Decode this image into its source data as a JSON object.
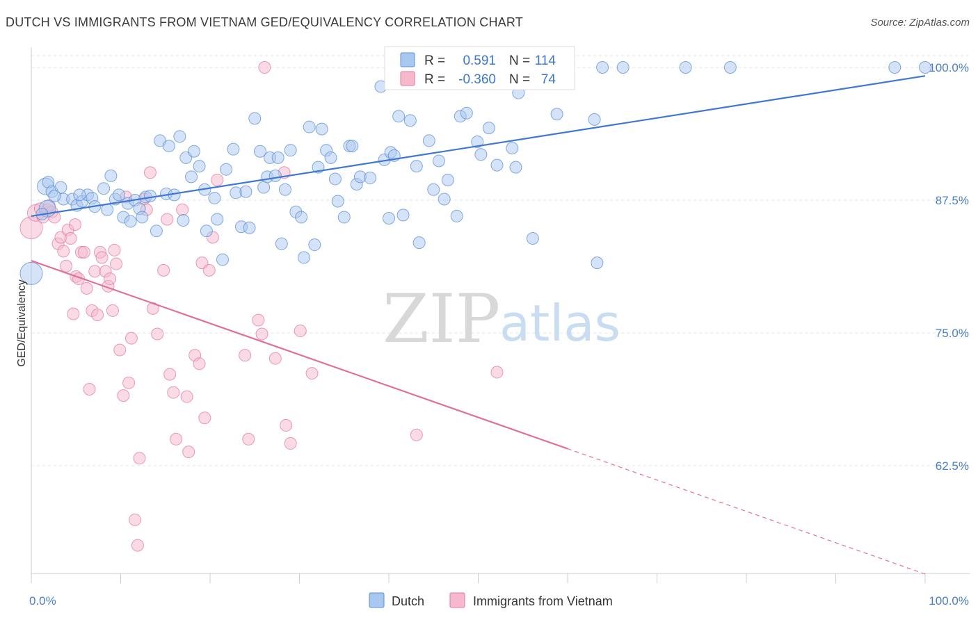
{
  "title": "DUTCH VS IMMIGRANTS FROM VIETNAM GED/EQUIVALENCY CORRELATION CHART",
  "source": "Source: ZipAtlas.com",
  "watermark": {
    "zip": "ZIP",
    "atlas": "atlas"
  },
  "legend": {
    "rows": [
      {
        "r_label": "R =",
        "r_value": "0.591",
        "n_label": "N =",
        "n_value": "114",
        "color": "#a9c8f0"
      },
      {
        "r_label": "R =",
        "r_value": "-0.360",
        "n_label": "N =",
        "n_value": "74",
        "color": "#f5b8cc"
      }
    ]
  },
  "bottom_legend": [
    "Dutch",
    "Immigrants from Vietnam"
  ],
  "chart_data": {
    "type": "scatter",
    "title": "DUTCH VS IMMIGRANTS FROM VIETNAM GED/EQUIVALENCY CORRELATION CHART",
    "xlabel": "",
    "ylabel": "GED/Equivalency",
    "xlim": [
      0,
      100
    ],
    "ylim": [
      52,
      101
    ],
    "x_tick_labels": [
      "0.0%",
      "100.0%"
    ],
    "y_ticks": [
      62.5,
      75.0,
      87.5,
      100.0
    ],
    "y_tick_labels": [
      "62.5%",
      "75.0%",
      "87.5%",
      "100.0%"
    ],
    "grid": true,
    "legend_position": "top-center",
    "series": [
      {
        "name": "Dutch",
        "color": "#a9c8f0",
        "stroke": "#5b8fd6",
        "trend": {
          "x": [
            0,
            100
          ],
          "y": [
            86.0,
            99.2
          ],
          "color": "#3f78d0"
        },
        "points": [
          [
            0,
            80.6,
            3
          ],
          [
            1.6,
            88.8,
            2
          ],
          [
            1.9,
            89.2,
            1
          ],
          [
            2.3,
            88.3,
            1
          ],
          [
            3.3,
            88.7,
            1
          ],
          [
            1.8,
            86.7,
            2
          ],
          [
            3.6,
            87.6,
            1
          ],
          [
            4.6,
            87.6,
            1
          ],
          [
            5.1,
            87.0,
            1
          ],
          [
            5.7,
            87.4,
            1
          ],
          [
            6.3,
            88.0,
            1
          ],
          [
            6.8,
            87.7,
            1
          ],
          [
            7.1,
            86.9,
            1
          ],
          [
            8.1,
            88.6,
            1
          ],
          [
            8.5,
            86.6,
            1
          ],
          [
            8.9,
            89.8,
            1
          ],
          [
            9.4,
            87.6,
            1
          ],
          [
            9.8,
            88.0,
            1
          ],
          [
            10.3,
            85.9,
            1
          ],
          [
            10.8,
            87.2,
            1
          ],
          [
            11.1,
            85.5,
            1
          ],
          [
            11.6,
            87.5,
            1
          ],
          [
            12.1,
            86.7,
            1
          ],
          [
            12.4,
            85.9,
            1
          ],
          [
            12.8,
            87.8,
            1
          ],
          [
            13.3,
            87.9,
            1
          ],
          [
            14.0,
            84.6,
            1
          ],
          [
            14.4,
            93.1,
            1
          ],
          [
            15.1,
            88.1,
            1
          ],
          [
            15.4,
            92.6,
            1
          ],
          [
            16.0,
            88.0,
            1
          ],
          [
            16.6,
            93.5,
            1
          ],
          [
            17.0,
            85.6,
            1
          ],
          [
            17.3,
            91.5,
            1
          ],
          [
            17.9,
            89.7,
            1
          ],
          [
            18.2,
            92.1,
            1
          ],
          [
            18.8,
            90.7,
            1
          ],
          [
            19.4,
            88.5,
            1
          ],
          [
            19.6,
            84.6,
            1
          ],
          [
            20.5,
            87.7,
            1
          ],
          [
            20.8,
            85.7,
            1
          ],
          [
            21.4,
            81.9,
            1
          ],
          [
            21.8,
            90.4,
            1
          ],
          [
            22.6,
            92.3,
            1
          ],
          [
            22.9,
            88.2,
            1
          ],
          [
            23.5,
            85.0,
            1
          ],
          [
            24.0,
            88.3,
            1
          ],
          [
            24.4,
            84.9,
            1
          ],
          [
            25.0,
            95.2,
            1
          ],
          [
            25.6,
            92.1,
            1
          ],
          [
            26.0,
            88.7,
            1
          ],
          [
            26.4,
            89.7,
            1
          ],
          [
            26.7,
            91.5,
            1
          ],
          [
            27.3,
            89.8,
            1
          ],
          [
            27.6,
            91.5,
            1
          ],
          [
            28.0,
            83.4,
            1
          ],
          [
            28.4,
            88.5,
            1
          ],
          [
            29.0,
            92.2,
            1
          ],
          [
            29.6,
            86.4,
            1
          ],
          [
            30.2,
            85.9,
            1
          ],
          [
            30.5,
            82.1,
            1
          ],
          [
            31.1,
            94.4,
            1
          ],
          [
            31.7,
            83.3,
            1
          ],
          [
            32.1,
            90.6,
            1
          ],
          [
            32.5,
            94.2,
            1
          ],
          [
            33.0,
            92.2,
            1
          ],
          [
            33.5,
            91.5,
            1
          ],
          [
            34.0,
            89.5,
            1
          ],
          [
            34.3,
            87.4,
            1
          ],
          [
            35.0,
            85.9,
            1
          ],
          [
            35.6,
            92.6,
            1
          ],
          [
            35.9,
            92.6,
            1
          ],
          [
            36.4,
            89.0,
            1
          ],
          [
            36.8,
            89.7,
            1
          ],
          [
            37.9,
            89.6,
            1
          ],
          [
            39.1,
            98.2,
            1
          ],
          [
            39.5,
            91.3,
            1
          ],
          [
            40.0,
            85.8,
            1
          ],
          [
            40.2,
            92.0,
            1
          ],
          [
            40.6,
            91.7,
            1
          ],
          [
            41.1,
            95.4,
            1
          ],
          [
            41.6,
            86.1,
            1
          ],
          [
            42.4,
            95.0,
            1
          ],
          [
            43.1,
            90.7,
            1
          ],
          [
            43.4,
            83.5,
            1
          ],
          [
            44.5,
            93.1,
            1
          ],
          [
            45.0,
            88.5,
            1
          ],
          [
            45.6,
            91.2,
            1
          ],
          [
            46.2,
            87.6,
            1
          ],
          [
            46.6,
            89.4,
            1
          ],
          [
            47.6,
            86.0,
            1
          ],
          [
            48.0,
            95.4,
            1
          ],
          [
            48.7,
            95.7,
            1
          ],
          [
            49.9,
            93.0,
            1
          ],
          [
            50.3,
            91.8,
            1
          ],
          [
            51.2,
            94.3,
            1
          ],
          [
            52.1,
            90.8,
            1
          ],
          [
            53.1,
            99.0,
            1
          ],
          [
            53.8,
            92.4,
            1
          ],
          [
            54.2,
            90.6,
            1
          ],
          [
            54.5,
            97.6,
            1
          ],
          [
            56.1,
            83.9,
            1
          ],
          [
            58.8,
            95.6,
            1
          ],
          [
            63.0,
            95.1,
            1
          ],
          [
            63.3,
            81.6,
            1
          ],
          [
            63.9,
            100.0,
            1
          ],
          [
            66.2,
            100.0,
            1
          ],
          [
            73.2,
            100.0,
            1
          ],
          [
            78.2,
            100.0,
            1
          ],
          [
            96.6,
            100.0,
            1
          ],
          [
            100.0,
            100.0,
            1
          ],
          [
            1.2,
            86.2,
            1
          ],
          [
            2.6,
            87.9,
            1
          ],
          [
            5.4,
            88.0,
            1
          ]
        ]
      },
      {
        "name": "Immigrants from Vietnam",
        "color": "#f5b8cc",
        "stroke": "#e27a9e",
        "trend": {
          "x": [
            0,
            60
          ],
          "y": [
            81.8,
            64.1
          ],
          "dashed_to": [
            100,
            52.3
          ],
          "color": "#e0709a"
        },
        "points": [
          [
            0,
            84.9,
            3
          ],
          [
            0.5,
            86.3,
            2
          ],
          [
            1.0,
            86.7,
            1
          ],
          [
            1.3,
            85.9,
            1
          ],
          [
            1.8,
            86.6,
            1
          ],
          [
            2.3,
            86.4,
            1
          ],
          [
            2.6,
            85.9,
            1
          ],
          [
            3.0,
            83.4,
            1
          ],
          [
            3.3,
            84.0,
            1
          ],
          [
            3.6,
            82.7,
            1
          ],
          [
            3.9,
            81.3,
            1
          ],
          [
            4.1,
            84.7,
            1
          ],
          [
            4.4,
            83.9,
            1
          ],
          [
            4.7,
            76.8,
            1
          ],
          [
            5.0,
            80.3,
            1
          ],
          [
            5.3,
            80.1,
            1
          ],
          [
            5.6,
            82.6,
            1
          ],
          [
            5.9,
            82.6,
            1
          ],
          [
            6.2,
            79.2,
            1
          ],
          [
            6.5,
            69.7,
            1
          ],
          [
            6.8,
            77.1,
            1
          ],
          [
            7.1,
            80.8,
            1
          ],
          [
            7.4,
            76.7,
            1
          ],
          [
            7.7,
            82.6,
            1
          ],
          [
            7.9,
            82.1,
            1
          ],
          [
            8.3,
            80.8,
            1
          ],
          [
            8.6,
            79.4,
            1
          ],
          [
            8.8,
            80.1,
            1
          ],
          [
            9.1,
            77.1,
            1
          ],
          [
            9.3,
            82.8,
            1
          ],
          [
            9.5,
            81.5,
            1
          ],
          [
            9.9,
            73.4,
            1
          ],
          [
            10.3,
            69.1,
            1
          ],
          [
            10.6,
            87.8,
            1
          ],
          [
            10.9,
            70.3,
            1
          ],
          [
            11.2,
            74.5,
            1
          ],
          [
            11.6,
            57.4,
            1
          ],
          [
            11.9,
            55.0,
            1
          ],
          [
            12.1,
            63.2,
            1
          ],
          [
            12.6,
            87.6,
            1
          ],
          [
            12.9,
            86.6,
            1
          ],
          [
            13.3,
            90.1,
            1
          ],
          [
            13.6,
            77.3,
            1
          ],
          [
            14.1,
            74.9,
            1
          ],
          [
            14.8,
            80.9,
            1
          ],
          [
            15.2,
            85.7,
            1
          ],
          [
            15.5,
            71.1,
            1
          ],
          [
            15.9,
            69.4,
            1
          ],
          [
            16.2,
            65.0,
            1
          ],
          [
            16.9,
            86.6,
            1
          ],
          [
            17.4,
            69.0,
            1
          ],
          [
            17.6,
            63.8,
            1
          ],
          [
            18.3,
            72.9,
            1
          ],
          [
            18.8,
            72.1,
            1
          ],
          [
            19.1,
            81.6,
            1
          ],
          [
            19.4,
            67.0,
            1
          ],
          [
            19.9,
            80.9,
            1
          ],
          [
            20.3,
            84.0,
            1
          ],
          [
            20.8,
            89.4,
            1
          ],
          [
            23.9,
            72.9,
            1
          ],
          [
            24.3,
            65.0,
            1
          ],
          [
            25.4,
            76.2,
            1
          ],
          [
            25.8,
            74.9,
            1
          ],
          [
            26.1,
            100.0,
            1
          ],
          [
            27.3,
            72.6,
            1
          ],
          [
            28.3,
            90.1,
            1
          ],
          [
            28.5,
            66.3,
            1
          ],
          [
            29.0,
            64.6,
            1
          ],
          [
            30.1,
            75.2,
            1
          ],
          [
            31.4,
            71.2,
            1
          ],
          [
            43.1,
            65.4,
            1
          ],
          [
            52.1,
            71.3,
            1
          ],
          [
            2.0,
            87.0,
            1
          ],
          [
            4.9,
            85.2,
            1
          ]
        ]
      }
    ]
  }
}
